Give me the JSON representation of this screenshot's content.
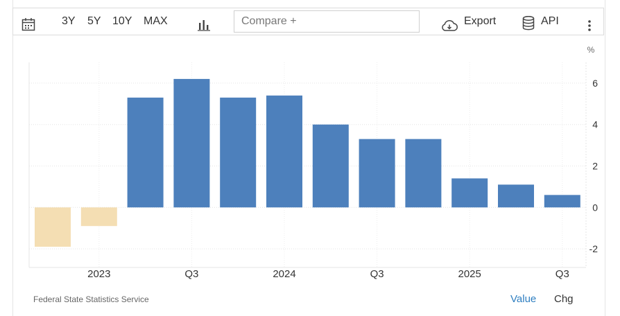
{
  "toolbar": {
    "ranges": [
      "3Y",
      "5Y",
      "10Y",
      "MAX"
    ],
    "compare_placeholder": "Compare +",
    "export_label": "Export",
    "api_label": "API",
    "icons": [
      "calendar-icon",
      "bar-chart-icon",
      "cloud-download-icon",
      "database-icon",
      "more-vertical-icon"
    ]
  },
  "chart_data": {
    "type": "bar",
    "categories": [
      "2022 Q4",
      "2023 Q1",
      "2023 Q2",
      "2023 Q3",
      "2023 Q4",
      "2024 Q1",
      "2024 Q2",
      "2024 Q3",
      "2024 Q4",
      "2025 Q1",
      "2025 Q2",
      "2025 Q3"
    ],
    "values": [
      -1.9,
      -0.9,
      5.3,
      6.2,
      5.3,
      5.4,
      4.0,
      3.3,
      3.3,
      1.4,
      1.1,
      0.6
    ],
    "x_tick_labels": [
      {
        "label": "2023",
        "at": 1
      },
      {
        "label": "Q3",
        "at": 3
      },
      {
        "label": "2024",
        "at": 5
      },
      {
        "label": "Q3",
        "at": 7
      },
      {
        "label": "2025",
        "at": 9
      },
      {
        "label": "Q3",
        "at": 11
      }
    ],
    "y_ticks": [
      -2,
      0,
      2,
      4,
      6
    ],
    "y_unit": "%",
    "ylim": [
      -2.9,
      7.0
    ],
    "positive_color": "#4d80bc",
    "negative_color": "#f4deb3",
    "grid": true
  },
  "footer": {
    "source": "Federal State Statistics Service",
    "value_label": "Value",
    "chg_label": "Chg"
  }
}
